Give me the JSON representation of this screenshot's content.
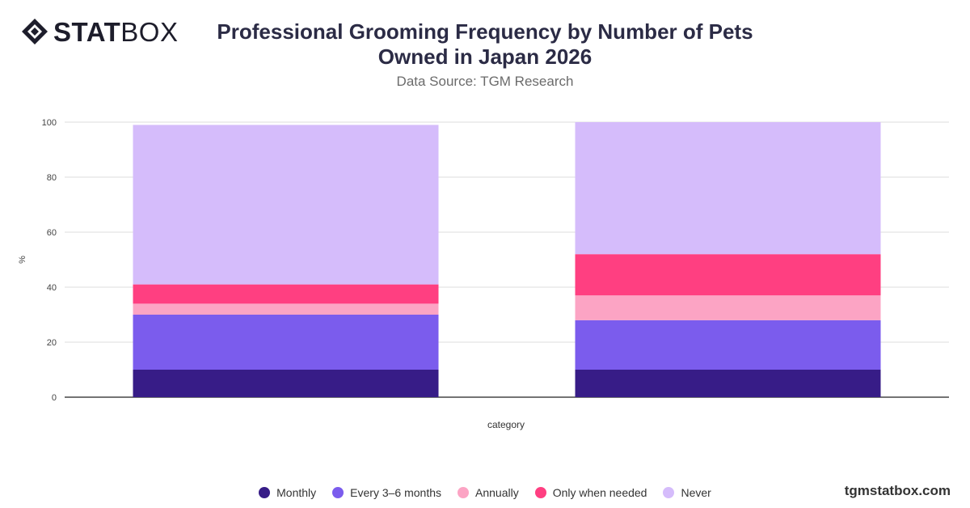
{
  "brand": {
    "bold": "STAT",
    "light": "BOX",
    "site": "tgmstatbox.com"
  },
  "chart_data": {
    "type": "bar",
    "stacked": true,
    "title": "Professional Grooming Frequency by Number of Pets Owned in Japan 2026",
    "subtitle": "Data Source: TGM Research",
    "xlabel": "category",
    "ylabel": "%",
    "ylim": [
      0,
      100
    ],
    "yticks": [
      0,
      20,
      40,
      60,
      80,
      100
    ],
    "categories": [
      "",
      ""
    ],
    "grid": true,
    "legend_position": "bottom",
    "series": [
      {
        "name": "Monthly",
        "color": "#371c87",
        "values": [
          10,
          10
        ]
      },
      {
        "name": "Every 3–6 months",
        "color": "#7b5ced",
        "values": [
          20,
          18
        ]
      },
      {
        "name": "Annually",
        "color": "#fca4c4",
        "values": [
          4,
          9
        ]
      },
      {
        "name": "Only when needed",
        "color": "#ff3f81",
        "values": [
          7,
          15
        ]
      },
      {
        "name": "Never",
        "color": "#d5bcfb",
        "values": [
          58,
          48
        ]
      }
    ]
  }
}
